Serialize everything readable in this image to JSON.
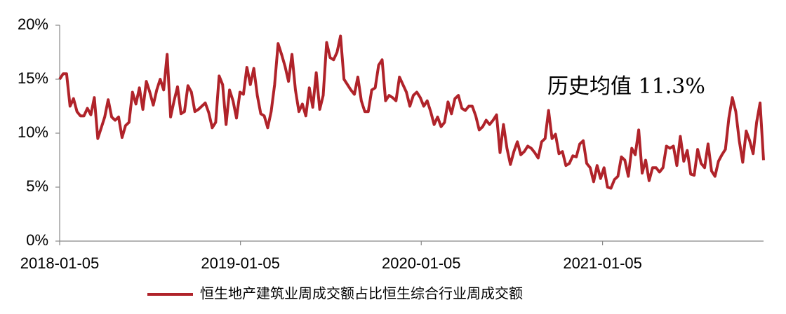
{
  "chart_data": {
    "type": "line",
    "annotation": "历史均值 11.3%",
    "x": [
      "2018-01-05",
      "2018-01-12",
      "2018-01-19",
      "2018-01-26",
      "2018-02-02",
      "2018-02-09",
      "2018-02-16",
      "2018-02-23",
      "2018-03-02",
      "2018-03-09",
      "2018-03-16",
      "2018-03-23",
      "2018-03-30",
      "2018-04-06",
      "2018-04-13",
      "2018-04-20",
      "2018-04-27",
      "2018-05-04",
      "2018-05-11",
      "2018-05-18",
      "2018-05-25",
      "2018-06-01",
      "2018-06-08",
      "2018-06-15",
      "2018-06-22",
      "2018-06-29",
      "2018-07-06",
      "2018-07-13",
      "2018-07-20",
      "2018-07-27",
      "2018-08-03",
      "2018-08-10",
      "2018-08-17",
      "2018-08-24",
      "2018-08-31",
      "2018-09-07",
      "2018-09-14",
      "2018-09-21",
      "2018-09-28",
      "2018-10-05",
      "2018-10-12",
      "2018-10-19",
      "2018-10-26",
      "2018-11-02",
      "2018-11-09",
      "2018-11-16",
      "2018-11-23",
      "2018-11-30",
      "2018-12-07",
      "2018-12-14",
      "2018-12-21",
      "2018-12-28",
      "2019-01-04",
      "2019-01-11",
      "2019-01-18",
      "2019-01-25",
      "2019-02-01",
      "2019-02-08",
      "2019-02-15",
      "2019-02-22",
      "2019-03-01",
      "2019-03-08",
      "2019-03-15",
      "2019-03-22",
      "2019-03-29",
      "2019-04-05",
      "2019-04-12",
      "2019-04-19",
      "2019-04-26",
      "2019-05-03",
      "2019-05-10",
      "2019-05-17",
      "2019-05-24",
      "2019-05-31",
      "2019-06-07",
      "2019-06-14",
      "2019-06-21",
      "2019-06-28",
      "2019-07-05",
      "2019-07-12",
      "2019-07-19",
      "2019-07-26",
      "2019-08-02",
      "2019-08-09",
      "2019-08-16",
      "2019-08-23",
      "2019-08-30",
      "2019-09-06",
      "2019-09-13",
      "2019-09-20",
      "2019-09-27",
      "2019-10-04",
      "2019-10-11",
      "2019-10-18",
      "2019-10-25",
      "2019-11-01",
      "2019-11-08",
      "2019-11-15",
      "2019-11-22",
      "2019-11-29",
      "2019-12-06",
      "2019-12-13",
      "2019-12-20",
      "2019-12-27",
      "2020-01-03",
      "2020-01-10",
      "2020-01-17",
      "2020-01-24",
      "2020-01-31",
      "2020-02-07",
      "2020-02-14",
      "2020-02-21",
      "2020-02-28",
      "2020-03-06",
      "2020-03-13",
      "2020-03-20",
      "2020-03-27",
      "2020-04-03",
      "2020-04-10",
      "2020-04-17",
      "2020-04-24",
      "2020-05-01",
      "2020-05-08",
      "2020-05-15",
      "2020-05-22",
      "2020-05-29",
      "2020-06-05",
      "2020-06-12",
      "2020-06-19",
      "2020-06-26",
      "2020-07-03",
      "2020-07-10",
      "2020-07-17",
      "2020-07-24",
      "2020-07-31",
      "2020-08-07",
      "2020-08-14",
      "2020-08-21",
      "2020-08-28",
      "2020-09-04",
      "2020-09-11",
      "2020-09-18",
      "2020-09-25",
      "2020-10-02",
      "2020-10-09",
      "2020-10-16",
      "2020-10-23",
      "2020-10-30",
      "2020-11-06",
      "2020-11-13",
      "2020-11-20",
      "2020-11-27",
      "2020-12-04",
      "2020-12-11",
      "2020-12-18",
      "2020-12-25",
      "2021-01-01",
      "2021-01-08",
      "2021-01-15",
      "2021-01-22",
      "2021-01-29",
      "2021-02-05",
      "2021-02-12",
      "2021-02-19",
      "2021-02-26",
      "2021-03-05",
      "2021-03-12",
      "2021-03-19",
      "2021-03-26",
      "2021-04-02",
      "2021-04-09",
      "2021-04-16",
      "2021-04-23",
      "2021-04-30",
      "2021-05-07",
      "2021-05-14",
      "2021-05-21",
      "2021-05-28",
      "2021-06-04",
      "2021-06-11",
      "2021-06-18",
      "2021-06-25",
      "2021-07-02",
      "2021-07-09",
      "2021-07-16",
      "2021-07-23",
      "2021-07-30",
      "2021-08-06",
      "2021-08-13",
      "2021-08-20",
      "2021-08-27",
      "2021-09-03",
      "2021-09-10",
      "2021-09-17",
      "2021-09-24",
      "2021-10-01",
      "2021-10-08",
      "2021-10-15",
      "2021-10-22",
      "2021-10-29",
      "2021-11-05",
      "2021-11-12",
      "2021-11-19",
      "2021-11-26"
    ],
    "series": [
      {
        "name": "恒生地产建筑业周成交额占比恒生综合行业周成交额",
        "color": "#b0232a",
        "values": [
          15.0,
          15.5,
          15.5,
          12.5,
          13.2,
          12.0,
          11.6,
          11.6,
          12.3,
          11.7,
          13.3,
          9.5,
          10.5,
          11.5,
          13.1,
          11.5,
          11.2,
          11.5,
          9.6,
          10.7,
          11.0,
          13.8,
          12.7,
          14.2,
          12.2,
          14.8,
          13.8,
          12.6,
          14.0,
          15.0,
          14.0,
          17.3,
          11.5,
          13.0,
          14.3,
          11.8,
          12.0,
          14.4,
          13.8,
          12.0,
          12.2,
          12.5,
          12.8,
          11.9,
          10.5,
          11.0,
          15.3,
          14.5,
          10.8,
          14.0,
          13.0,
          11.4,
          13.8,
          13.6,
          16.1,
          14.5,
          16.0,
          13.5,
          11.8,
          11.6,
          10.5,
          12.0,
          14.5,
          18.3,
          17.3,
          16.2,
          14.8,
          17.3,
          14.0,
          12.0,
          12.7,
          11.6,
          14.2,
          12.4,
          15.6,
          12.2,
          13.5,
          18.4,
          17.0,
          16.8,
          17.5,
          19.0,
          15.0,
          14.5,
          14.0,
          13.6,
          15.2,
          13.0,
          12.0,
          12.0,
          14.0,
          14.2,
          16.3,
          16.8,
          13.0,
          13.5,
          13.3,
          13.0,
          15.2,
          14.5,
          13.8,
          12.5,
          13.5,
          13.8,
          13.3,
          12.5,
          13.0,
          12.0,
          10.8,
          11.5,
          10.6,
          11.0,
          12.9,
          11.8,
          13.2,
          13.5,
          12.3,
          12.1,
          12.5,
          12.5,
          11.6,
          10.3,
          10.6,
          11.2,
          10.8,
          11.2,
          11.7,
          8.2,
          10.8,
          8.6,
          7.1,
          8.3,
          9.2,
          8.0,
          8.3,
          8.8,
          8.6,
          8.2,
          7.7,
          9.2,
          9.5,
          12.1,
          9.5,
          9.9,
          8.1,
          8.3,
          7.0,
          7.2,
          7.9,
          7.8,
          9.0,
          9.3,
          7.2,
          6.8,
          5.5,
          7.0,
          5.8,
          6.8,
          5.0,
          4.9,
          5.7,
          6.0,
          7.8,
          7.5,
          6.0,
          8.6,
          8.0,
          10.3,
          6.3,
          7.5,
          5.6,
          6.8,
          6.8,
          6.4,
          6.8,
          8.8,
          8.6,
          8.8,
          7.0,
          9.7,
          7.4,
          8.4,
          6.2,
          6.1,
          8.5,
          7.2,
          6.8,
          9.0,
          6.5,
          6.0,
          7.4,
          8.0,
          8.5,
          11.4,
          13.3,
          12.0,
          9.3,
          7.3,
          10.2,
          9.3,
          8.1,
          11.0,
          12.8,
          7.5
        ]
      }
    ],
    "xlim": [
      "2018-01-05",
      "2021-11-26"
    ],
    "xticks": [
      "2018-01-05",
      "2019-01-05",
      "2020-01-05",
      "2021-01-05"
    ],
    "ylim": [
      0,
      20
    ],
    "yticks": [
      {
        "value": 0,
        "label": "0%"
      },
      {
        "value": 5,
        "label": "5%"
      },
      {
        "value": 10,
        "label": "10%"
      },
      {
        "value": 15,
        "label": "15%"
      },
      {
        "value": 20,
        "label": "20%"
      }
    ],
    "grid": false,
    "legend": "bottom"
  }
}
